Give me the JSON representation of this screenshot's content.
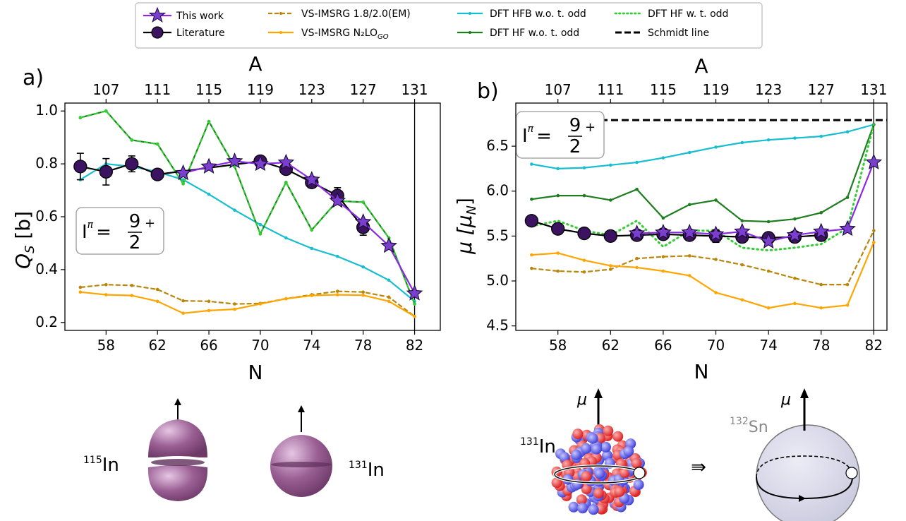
{
  "legend": {
    "this_work": "This work",
    "literature": "Literature",
    "vs18": "VS-IMSRG 1.8/2.0(EM)",
    "vsgo": "VS-IMSRG N₂LO",
    "vsgo_sub": "GO",
    "hfb": "DFT HFB w.o. t. odd",
    "hfwo": "DFT HF w.o. t. odd",
    "hfw": "DFT HF w. t. odd",
    "schmidt": "Schmidt line"
  },
  "colors": {
    "this_work": "#8a2be2",
    "literature": "#3c1361",
    "vs18": "#b8860b",
    "vsgo": "#ffa500",
    "hfb": "#17becf",
    "hfwo": "#1e7d1e",
    "hfw": "#32cd32",
    "schmidt": "#000000"
  },
  "panels": {
    "a": {
      "label": "a)",
      "xlabel": "N",
      "ylabel": "Q",
      "ylabel_sub": "S",
      "ylabel_unit": " [b]",
      "toplabel": "A",
      "spin": "I",
      "spin_sup": "π",
      "spin_eq": "= ",
      "spin_num": "9",
      "spin_den": "2",
      "spin_plus": "+"
    },
    "b": {
      "label": "b)",
      "xlabel": "N",
      "ylabel": "μ  [μ",
      "ylabel_sub": "N",
      "ylabel_end": "]",
      "toplabel": "A",
      "spin": "I",
      "spin_sup": "π",
      "spin_eq": "= ",
      "spin_num": "9",
      "spin_den": "2",
      "spin_plus": "+"
    }
  },
  "illustrations": {
    "in115": "In",
    "in115_mass": "115",
    "in131a": "In",
    "in131a_mass": "131",
    "in131b": "In",
    "in131b_mass": "131",
    "sn132": "Sn",
    "sn132_mass": "132",
    "mu_left": "μ",
    "mu_right": "μ",
    "implies": "⇛"
  },
  "chart_data": [
    {
      "type": "line",
      "title": "",
      "xlabel": "N",
      "ylabel": "Q_S [b]",
      "top_axis_label": "A",
      "top_ticks": [
        "107",
        "111",
        "115",
        "119",
        "123",
        "127",
        "131"
      ],
      "x_ticks": [
        58,
        62,
        66,
        70,
        74,
        78,
        82
      ],
      "y_ticks": [
        0.2,
        0.4,
        0.6,
        0.8,
        1.0
      ],
      "xlim": [
        54.8,
        84.0
      ],
      "ylim": [
        0.17,
        1.03
      ],
      "vline": 82,
      "series": [
        {
          "name": "DFT HFB w.o. t. odd",
          "key": "hfb",
          "x": [
            56,
            58,
            60,
            62,
            64,
            66,
            68,
            70,
            72,
            74,
            76,
            78,
            80,
            82
          ],
          "y": [
            0.74,
            0.8,
            0.79,
            0.77,
            0.74,
            0.685,
            0.625,
            0.57,
            0.52,
            0.48,
            0.45,
            0.41,
            0.36,
            0.28
          ]
        },
        {
          "name": "DFT HF w.o. t. odd",
          "key": "hfwo",
          "x": [
            56,
            58,
            60,
            62,
            64,
            66,
            68,
            70,
            72,
            74,
            76,
            78,
            80,
            82
          ],
          "y": [
            0.975,
            1.0,
            0.89,
            0.875,
            0.725,
            0.96,
            0.79,
            0.535,
            0.73,
            0.55,
            0.66,
            0.655,
            0.52,
            0.27
          ]
        },
        {
          "name": "DFT HF w. t. odd",
          "key": "hfw",
          "dash": true,
          "x": [
            56,
            58,
            60,
            62,
            64,
            66,
            68,
            70,
            72,
            74,
            76,
            78,
            80,
            82
          ],
          "y": [
            0.975,
            1.0,
            0.89,
            0.875,
            0.725,
            0.96,
            0.79,
            0.535,
            0.73,
            0.55,
            0.66,
            0.655,
            0.52,
            0.27
          ]
        },
        {
          "name": "VS-IMSRG 1.8/2.0(EM)",
          "key": "vs18",
          "dash": true,
          "x": [
            56,
            58,
            60,
            62,
            64,
            66,
            68,
            70,
            72,
            74,
            76,
            78,
            80,
            82
          ],
          "y": [
            0.333,
            0.343,
            0.34,
            0.325,
            0.282,
            0.28,
            0.27,
            0.272,
            0.29,
            0.305,
            0.318,
            0.315,
            0.296,
            0.223
          ]
        },
        {
          "name": "VS-IMSRG N2LO_GO",
          "key": "vsgo",
          "x": [
            56,
            58,
            60,
            62,
            64,
            66,
            68,
            70,
            72,
            74,
            76,
            78,
            80,
            82
          ],
          "y": [
            0.315,
            0.305,
            0.302,
            0.28,
            0.235,
            0.245,
            0.25,
            0.27,
            0.29,
            0.302,
            0.305,
            0.303,
            0.28,
            0.223
          ]
        },
        {
          "name": "Literature",
          "key": "literature",
          "marker": "circle",
          "x": [
            56,
            58,
            60,
            62,
            70,
            72,
            74,
            76,
            78
          ],
          "y": [
            0.79,
            0.77,
            0.8,
            0.76,
            0.81,
            0.78,
            0.73,
            0.68,
            0.56
          ],
          "err": [
            0.05,
            0.05,
            0.03,
            0.02,
            0.02,
            0.02,
            0.02,
            0.03,
            0.03
          ]
        },
        {
          "name": "This work",
          "key": "this_work",
          "marker": "star",
          "x": [
            64,
            66,
            68,
            70,
            72,
            74,
            76,
            78,
            80,
            82
          ],
          "y": [
            0.765,
            0.79,
            0.81,
            0.8,
            0.805,
            0.74,
            0.66,
            0.58,
            0.49,
            0.31
          ]
        }
      ]
    },
    {
      "type": "line",
      "title": "",
      "xlabel": "N",
      "ylabel": "μ [μ_N]",
      "top_axis_label": "A",
      "top_ticks": [
        "107",
        "111",
        "115",
        "119",
        "123",
        "127",
        "131"
      ],
      "x_ticks": [
        58,
        62,
        66,
        70,
        74,
        78,
        82
      ],
      "y_ticks": [
        4.5,
        5.0,
        5.5,
        6.0,
        6.5
      ],
      "xlim": [
        54.8,
        83.0
      ],
      "ylim": [
        4.45,
        6.98
      ],
      "vline": 82,
      "schmidt_value": 6.79,
      "series": [
        {
          "name": "DFT HFB w.o. t. odd",
          "key": "hfb",
          "x": [
            56,
            58,
            60,
            62,
            64,
            66,
            68,
            70,
            72,
            74,
            76,
            78,
            80,
            82
          ],
          "y": [
            6.3,
            6.25,
            6.26,
            6.29,
            6.32,
            6.37,
            6.43,
            6.49,
            6.54,
            6.57,
            6.59,
            6.61,
            6.66,
            6.74
          ]
        },
        {
          "name": "DFT HF w.o. t. odd",
          "key": "hfwo",
          "x": [
            56,
            58,
            60,
            62,
            64,
            66,
            68,
            70,
            72,
            74,
            76,
            78,
            80,
            82
          ],
          "y": [
            5.91,
            5.95,
            5.95,
            5.9,
            6.02,
            5.7,
            5.85,
            5.9,
            5.67,
            5.66,
            5.69,
            5.76,
            5.93,
            6.74
          ]
        },
        {
          "name": "DFT HF w. t. odd",
          "key": "hfw",
          "dots": true,
          "x": [
            56,
            58,
            60,
            62,
            64,
            66,
            68,
            70,
            72,
            74,
            76,
            78,
            80,
            82
          ],
          "y": [
            5.61,
            5.67,
            5.56,
            5.51,
            5.67,
            5.38,
            5.56,
            5.56,
            5.37,
            5.34,
            5.37,
            5.41,
            5.59,
            6.74
          ]
        },
        {
          "name": "VS-IMSRG 1.8/2.0(EM)",
          "key": "vs18",
          "dash": true,
          "x": [
            56,
            58,
            60,
            62,
            64,
            66,
            68,
            70,
            72,
            74,
            76,
            78,
            80,
            82
          ],
          "y": [
            5.14,
            5.11,
            5.1,
            5.13,
            5.25,
            5.27,
            5.28,
            5.24,
            5.18,
            5.11,
            5.03,
            4.96,
            4.96,
            5.56
          ]
        },
        {
          "name": "VS-IMSRG N2LO_GO",
          "key": "vsgo",
          "x": [
            56,
            58,
            60,
            62,
            64,
            66,
            68,
            70,
            72,
            74,
            76,
            78,
            80,
            82
          ],
          "y": [
            5.29,
            5.31,
            5.23,
            5.17,
            5.15,
            5.11,
            5.06,
            4.87,
            4.79,
            4.7,
            4.75,
            4.7,
            4.73,
            5.43
          ]
        },
        {
          "name": "Literature",
          "key": "literature",
          "marker": "circle",
          "x": [
            56,
            58,
            60,
            62,
            64,
            66,
            68,
            70,
            72,
            74,
            76,
            78
          ],
          "y": [
            5.67,
            5.58,
            5.53,
            5.5,
            5.51,
            5.52,
            5.51,
            5.5,
            5.49,
            5.48,
            5.49,
            5.51
          ],
          "err": [
            0,
            0,
            0,
            0,
            0,
            0,
            0,
            0.07,
            0,
            0,
            0,
            0
          ]
        },
        {
          "name": "This work",
          "key": "this_work",
          "marker": "star",
          "x": [
            64,
            66,
            68,
            70,
            72,
            74,
            76,
            78,
            80,
            82
          ],
          "y": [
            5.53,
            5.54,
            5.54,
            5.52,
            5.55,
            5.44,
            5.51,
            5.55,
            5.58,
            6.32
          ]
        }
      ]
    }
  ]
}
